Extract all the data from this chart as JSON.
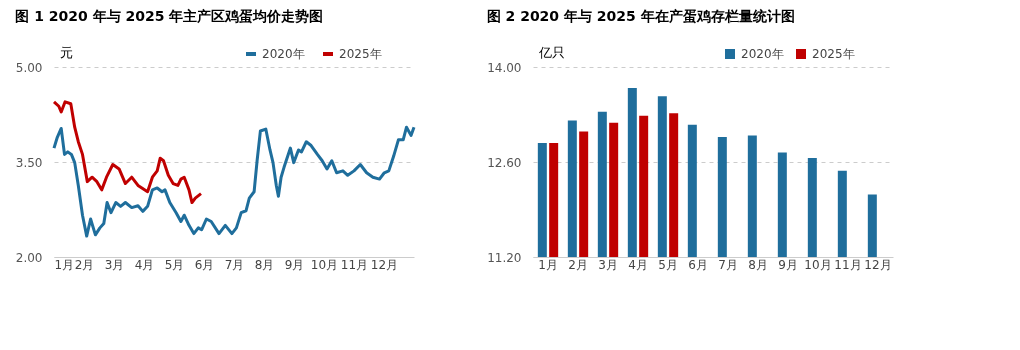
{
  "chart_data": [
    {
      "type": "line",
      "title": "图 1 2020 年与 2025 年主产区鸡蛋均价走势图",
      "ylabel": "元",
      "xlim": [
        1,
        13
      ],
      "xticks": [
        {
          "value": 1,
          "label": "1月"
        },
        {
          "value": 2,
          "label": "2月"
        },
        {
          "value": 3,
          "label": "3月"
        },
        {
          "value": 4,
          "label": "4月"
        },
        {
          "value": 5,
          "label": "5月"
        },
        {
          "value": 6,
          "label": "6月"
        },
        {
          "value": 7,
          "label": "7月"
        },
        {
          "value": 8,
          "label": "8月"
        },
        {
          "value": 9,
          "label": "9月"
        },
        {
          "value": 10,
          "label": "10月"
        },
        {
          "value": 11,
          "label": "11月"
        },
        {
          "value": 12,
          "label": "12月"
        }
      ],
      "ylim": [
        2,
        5
      ],
      "yticks": [
        {
          "value": 2,
          "label": "2.00"
        },
        {
          "value": 3.5,
          "label": "3.50"
        },
        {
          "value": 5,
          "label": "5.00"
        }
      ],
      "grid": "y",
      "legend": "top right",
      "marker": "none",
      "line_style": "solid",
      "series": [
        {
          "name": "2020年",
          "color": "#1f6e9c",
          "x": [
            1.0,
            1.11,
            1.24,
            1.35,
            1.46,
            1.58,
            1.69,
            1.81,
            1.95,
            2.09,
            2.22,
            2.38,
            2.53,
            2.66,
            2.77,
            2.9,
            3.06,
            3.22,
            3.38,
            3.59,
            3.8,
            3.96,
            4.12,
            4.28,
            4.44,
            4.6,
            4.7,
            4.86,
            5.07,
            5.23,
            5.34,
            5.5,
            5.66,
            5.81,
            5.92,
            6.08,
            6.24,
            6.5,
            6.71,
            6.93,
            7.08,
            7.24,
            7.4,
            7.51,
            7.67,
            7.77,
            7.88,
            8.06,
            8.2,
            8.3,
            8.41,
            8.48,
            8.57,
            8.67,
            8.88,
            8.99,
            9.15,
            9.25,
            9.41,
            9.57,
            9.78,
            9.94,
            10.1,
            10.26,
            10.42,
            10.63,
            10.79,
            11.0,
            11.21,
            11.42,
            11.63,
            11.85,
            12.01,
            12.16,
            12.32,
            12.48,
            12.64,
            12.75,
            12.9,
            13.0
          ],
          "values": [
            3.72,
            3.89,
            4.03,
            3.62,
            3.66,
            3.62,
            3.49,
            3.13,
            2.66,
            2.33,
            2.6,
            2.35,
            2.46,
            2.53,
            2.86,
            2.7,
            2.86,
            2.8,
            2.86,
            2.78,
            2.81,
            2.72,
            2.8,
            3.06,
            3.09,
            3.03,
            3.06,
            2.86,
            2.7,
            2.56,
            2.66,
            2.5,
            2.37,
            2.46,
            2.43,
            2.6,
            2.56,
            2.37,
            2.5,
            2.37,
            2.46,
            2.7,
            2.73,
            2.93,
            3.03,
            3.52,
            3.99,
            4.02,
            3.69,
            3.49,
            3.13,
            2.96,
            3.26,
            3.42,
            3.72,
            3.49,
            3.69,
            3.66,
            3.82,
            3.76,
            3.62,
            3.52,
            3.39,
            3.52,
            3.33,
            3.36,
            3.29,
            3.36,
            3.46,
            3.33,
            3.26,
            3.23,
            3.33,
            3.36,
            3.59,
            3.85,
            3.85,
            4.05,
            3.92,
            4.05
          ]
        },
        {
          "name": "2025年",
          "color": "#c00000",
          "x": [
            1.0,
            1.16,
            1.24,
            1.37,
            1.56,
            1.69,
            1.81,
            1.95,
            2.11,
            2.27,
            2.43,
            2.59,
            2.75,
            2.96,
            3.17,
            3.38,
            3.59,
            3.8,
            4.12,
            4.28,
            4.44,
            4.54,
            4.65,
            4.81,
            4.97,
            5.13,
            5.23,
            5.34,
            5.5,
            5.6,
            5.71,
            5.9
          ],
          "values": [
            4.45,
            4.38,
            4.29,
            4.45,
            4.42,
            4.05,
            3.82,
            3.62,
            3.19,
            3.26,
            3.19,
            3.06,
            3.26,
            3.46,
            3.39,
            3.16,
            3.26,
            3.13,
            3.03,
            3.26,
            3.36,
            3.56,
            3.52,
            3.29,
            3.16,
            3.13,
            3.23,
            3.26,
            3.06,
            2.86,
            2.93,
            3.0
          ]
        }
      ]
    },
    {
      "type": "bar",
      "title": "图 2 2020 年与 2025 年在产蛋鸡存栏量统计图",
      "ylabel": "亿只",
      "categories": [
        "1月",
        "2月",
        "3月",
        "4月",
        "5月",
        "6月",
        "7月",
        "8月",
        "9月",
        "10月",
        "11月",
        "12月"
      ],
      "ylim": [
        11.2,
        14
      ],
      "yticks": [
        {
          "value": 11.2,
          "label": "11.20"
        },
        {
          "value": 12.6,
          "label": "12.60"
        },
        {
          "value": 14,
          "label": "14.00"
        }
      ],
      "grid": "y",
      "legend": "top right",
      "series": [
        {
          "name": "2020年",
          "color": "#1f6e9c",
          "values": [
            12.88,
            13.21,
            13.34,
            13.69,
            13.57,
            13.15,
            12.97,
            12.99,
            12.74,
            12.66,
            12.47,
            12.12
          ]
        },
        {
          "name": "2025年",
          "color": "#c00000",
          "values": [
            12.88,
            13.05,
            13.18,
            13.28,
            13.32,
            null,
            null,
            null,
            null,
            null,
            null,
            null
          ]
        }
      ]
    }
  ]
}
